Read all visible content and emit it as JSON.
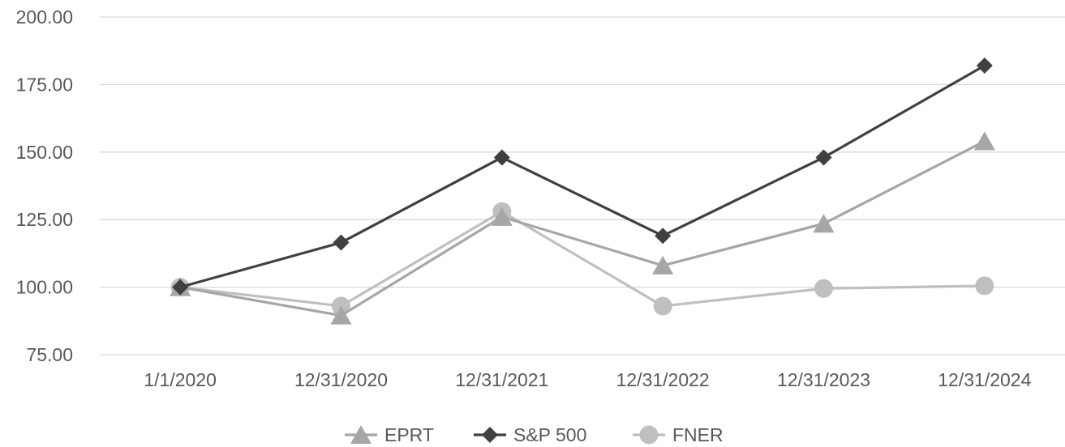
{
  "chart_data": {
    "type": "line",
    "title": "",
    "xlabel": "",
    "ylabel": "",
    "categories": [
      "1/1/2020",
      "12/31/2020",
      "12/31/2021",
      "12/31/2022",
      "12/31/2023",
      "12/31/2024"
    ],
    "ylim": [
      75,
      200
    ],
    "yticks": [
      "75.00",
      "100.00",
      "125.00",
      "150.00",
      "175.00",
      "200.00"
    ],
    "grid": "horizontal",
    "legend_position": "bottom",
    "series": [
      {
        "name": "EPRT",
        "marker": "triangle",
        "color": "#a6a6a6",
        "values": [
          100.0,
          89.5,
          126.0,
          108.0,
          123.5,
          154.0
        ]
      },
      {
        "name": "S&P 500",
        "marker": "diamond",
        "color": "#404040",
        "values": [
          100.0,
          116.5,
          148.0,
          119.0,
          148.0,
          182.0
        ]
      },
      {
        "name": "FNER",
        "marker": "circle",
        "color": "#bfbfbf",
        "values": [
          100.0,
          93.0,
          128.0,
          93.0,
          99.5,
          100.5
        ]
      }
    ]
  }
}
